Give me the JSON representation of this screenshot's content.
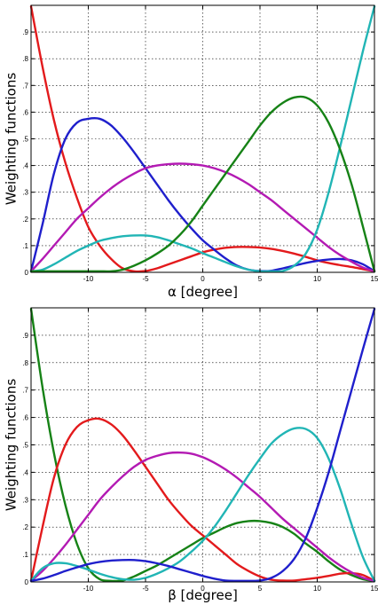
{
  "chart_data": [
    {
      "type": "line",
      "xlabel": "α [degree]",
      "ylabel": "Weighting functions",
      "xlim": [
        -15,
        15
      ],
      "ylim": [
        0,
        1
      ],
      "xticks": [
        -10,
        -5,
        0,
        5,
        10,
        15
      ],
      "yticks": [
        0,
        0.1,
        0.2,
        0.3,
        0.4,
        0.5,
        0.6,
        0.7,
        0.8,
        0.9
      ],
      "grid": true,
      "x": [
        -15,
        -14,
        -13,
        -12,
        -11,
        -10,
        -9,
        -8,
        -7,
        -6,
        -5,
        -4,
        -3,
        -2,
        -1,
        0,
        1,
        2,
        3,
        4,
        5,
        6,
        7,
        8,
        9,
        10,
        11,
        12,
        13,
        14,
        15
      ],
      "series": [
        {
          "color": "#e31a1c",
          "values": [
            1.0,
            0.77,
            0.57,
            0.41,
            0.28,
            0.17,
            0.1,
            0.05,
            0.015,
            0.0,
            0.005,
            0.015,
            0.03,
            0.045,
            0.06,
            0.075,
            0.085,
            0.092,
            0.095,
            0.095,
            0.093,
            0.088,
            0.08,
            0.07,
            0.058,
            0.045,
            0.035,
            0.027,
            0.02,
            0.012,
            0.0
          ]
        },
        {
          "color": "#1f1fcc",
          "values": [
            0.0,
            0.18,
            0.37,
            0.5,
            0.56,
            0.575,
            0.575,
            0.55,
            0.505,
            0.45,
            0.39,
            0.33,
            0.27,
            0.215,
            0.165,
            0.12,
            0.085,
            0.052,
            0.025,
            0.01,
            0.005,
            0.006,
            0.015,
            0.025,
            0.035,
            0.043,
            0.048,
            0.05,
            0.045,
            0.03,
            0.0
          ]
        },
        {
          "color": "#b31ab3",
          "values": [
            0.0,
            0.05,
            0.1,
            0.15,
            0.2,
            0.24,
            0.28,
            0.315,
            0.345,
            0.37,
            0.39,
            0.4,
            0.405,
            0.407,
            0.405,
            0.4,
            0.39,
            0.375,
            0.355,
            0.33,
            0.3,
            0.27,
            0.235,
            0.2,
            0.165,
            0.13,
            0.095,
            0.065,
            0.04,
            0.018,
            0.0
          ]
        },
        {
          "color": "#21b5b5",
          "values": [
            0.0,
            0.01,
            0.03,
            0.055,
            0.08,
            0.1,
            0.118,
            0.128,
            0.135,
            0.138,
            0.138,
            0.132,
            0.12,
            0.105,
            0.09,
            0.072,
            0.055,
            0.038,
            0.022,
            0.01,
            0.003,
            0.0,
            0.005,
            0.025,
            0.07,
            0.16,
            0.3,
            0.47,
            0.65,
            0.83,
            1.0
          ]
        },
        {
          "color": "#168216",
          "values": [
            0.0,
            0.0,
            0.0,
            0.0,
            0.0,
            0.0,
            0.0,
            0.002,
            0.01,
            0.025,
            0.045,
            0.07,
            0.1,
            0.14,
            0.19,
            0.25,
            0.31,
            0.37,
            0.43,
            0.49,
            0.55,
            0.6,
            0.635,
            0.655,
            0.655,
            0.625,
            0.56,
            0.46,
            0.33,
            0.17,
            0.0
          ]
        }
      ]
    },
    {
      "type": "line",
      "xlabel": "β [degree]",
      "ylabel": "Weighting functions",
      "xlim": [
        -15,
        15
      ],
      "ylim": [
        0,
        1
      ],
      "xticks": [
        -10,
        -5,
        0,
        5,
        10,
        15
      ],
      "yticks": [
        0,
        0.1,
        0.2,
        0.3,
        0.4,
        0.5,
        0.6,
        0.7,
        0.8,
        0.9
      ],
      "grid": true,
      "x": [
        -15,
        -14,
        -13,
        -12,
        -11,
        -10,
        -9,
        -8,
        -7,
        -6,
        -5,
        -4,
        -3,
        -2,
        -1,
        0,
        1,
        2,
        3,
        4,
        5,
        6,
        7,
        8,
        9,
        10,
        11,
        12,
        13,
        14,
        15
      ],
      "series": [
        {
          "color": "#168216",
          "values": [
            1.0,
            0.71,
            0.47,
            0.28,
            0.14,
            0.05,
            0.01,
            0.0,
            0.005,
            0.02,
            0.04,
            0.06,
            0.085,
            0.11,
            0.135,
            0.16,
            0.18,
            0.2,
            0.215,
            0.222,
            0.222,
            0.215,
            0.2,
            0.175,
            0.14,
            0.11,
            0.075,
            0.045,
            0.025,
            0.01,
            0.0
          ]
        },
        {
          "color": "#e31a1c",
          "values": [
            0.0,
            0.2,
            0.38,
            0.5,
            0.565,
            0.59,
            0.595,
            0.575,
            0.535,
            0.48,
            0.42,
            0.36,
            0.3,
            0.25,
            0.205,
            0.17,
            0.135,
            0.1,
            0.065,
            0.04,
            0.02,
            0.008,
            0.005,
            0.005,
            0.01,
            0.015,
            0.022,
            0.03,
            0.032,
            0.025,
            0.0
          ]
        },
        {
          "color": "#b31ab3",
          "values": [
            0.0,
            0.04,
            0.085,
            0.135,
            0.19,
            0.245,
            0.3,
            0.345,
            0.385,
            0.42,
            0.445,
            0.46,
            0.47,
            0.472,
            0.468,
            0.455,
            0.435,
            0.41,
            0.38,
            0.345,
            0.31,
            0.27,
            0.23,
            0.195,
            0.16,
            0.125,
            0.09,
            0.06,
            0.035,
            0.015,
            0.0
          ]
        },
        {
          "color": "#21b5b5",
          "values": [
            0.0,
            0.05,
            0.068,
            0.068,
            0.058,
            0.045,
            0.03,
            0.018,
            0.01,
            0.008,
            0.015,
            0.03,
            0.05,
            0.075,
            0.11,
            0.15,
            0.2,
            0.26,
            0.325,
            0.39,
            0.45,
            0.505,
            0.54,
            0.56,
            0.558,
            0.525,
            0.45,
            0.34,
            0.21,
            0.09,
            0.0
          ]
        },
        {
          "color": "#1f1fcc",
          "values": [
            0.0,
            0.012,
            0.025,
            0.04,
            0.053,
            0.065,
            0.073,
            0.078,
            0.08,
            0.08,
            0.076,
            0.068,
            0.058,
            0.046,
            0.034,
            0.022,
            0.012,
            0.005,
            0.001,
            0.0,
            0.005,
            0.015,
            0.04,
            0.085,
            0.16,
            0.27,
            0.4,
            0.55,
            0.7,
            0.85,
            1.0
          ]
        }
      ]
    }
  ]
}
